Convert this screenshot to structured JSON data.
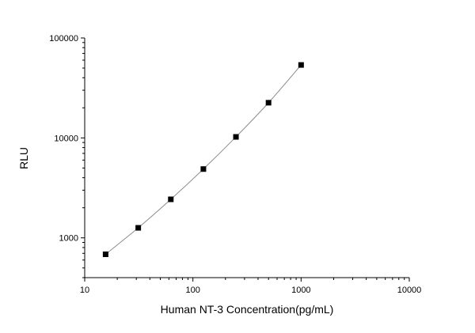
{
  "chart_data": {
    "type": "scatter",
    "title": "",
    "xlabel": "Human NT-3 Concentration(pg/mL)",
    "ylabel": "RLU",
    "xscale": "log",
    "yscale": "log",
    "xlim": [
      10,
      10000
    ],
    "ylim": [
      400,
      100000
    ],
    "x_ticks": [
      "10",
      "100",
      "1000",
      "10000"
    ],
    "y_ticks": [
      "1000",
      "10000",
      "100000"
    ],
    "grid": false,
    "fit_line": true,
    "colors": {
      "marker": "#000000",
      "line": "#8c8c8c",
      "axis": "#000000"
    },
    "series": [
      {
        "x": [
          15.6,
          31.25,
          62.5,
          125,
          250,
          500,
          1000
        ],
        "y": [
          685,
          1260,
          2430,
          4880,
          10240,
          22500,
          53700
        ]
      }
    ]
  }
}
